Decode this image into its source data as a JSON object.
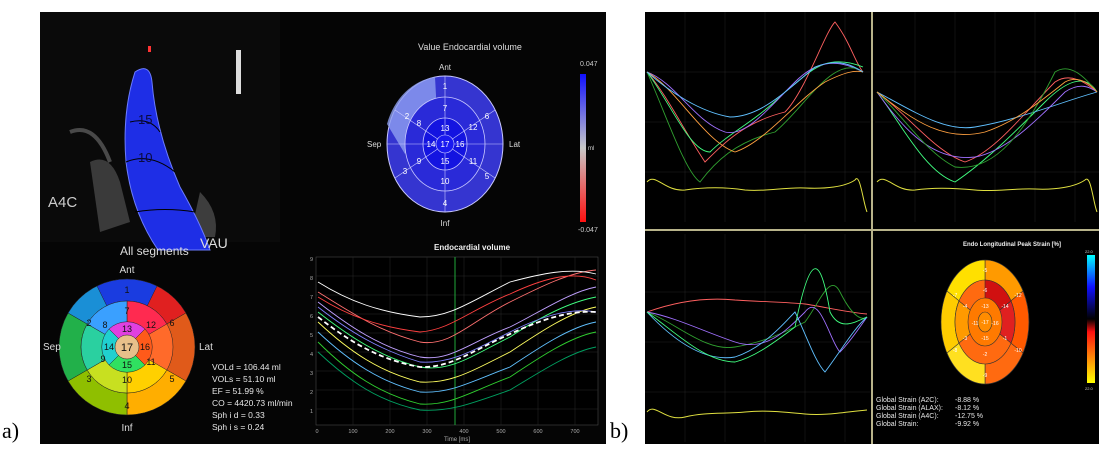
{
  "figure_labels": {
    "a": "a)",
    "b": "b)"
  },
  "panel_a": {
    "view_label": "A4C",
    "bottom_text": "VAU",
    "all_segments_title": "All segments",
    "bullseye_all": {
      "ant": "Ant",
      "inf": "Inf",
      "sep": "Sep",
      "lat": "Lat",
      "segment_labels": [
        "1",
        "2",
        "3",
        "4",
        "5",
        "6",
        "7",
        "8",
        "9",
        "10",
        "11",
        "12",
        "13",
        "14",
        "15",
        "16",
        "17"
      ]
    },
    "metrics": [
      "VOLd = 106.44 ml",
      "VOLs = 51.10 ml",
      "EF = 51.99 %",
      "CO = 4420.73 ml/min",
      "Sph i d = 0.33",
      "Sph i s = 0.24"
    ],
    "value_map": {
      "title": "Value Endocardial volume",
      "ant": "Ant",
      "inf": "Inf",
      "sep": "Sep",
      "lat": "Lat",
      "scale_max": "0.047",
      "scale_min": "-0.047",
      "scale_unit": "ml",
      "segment_labels": [
        "1",
        "2",
        "3",
        "4",
        "5",
        "6",
        "7",
        "8",
        "9",
        "10",
        "11",
        "12",
        "13",
        "14",
        "15",
        "16",
        "17"
      ]
    },
    "volume_chart": {
      "title": "Endocardial volume",
      "xlabel": "Time [ms]",
      "x_ticks": [
        "0",
        "100",
        "200",
        "300",
        "400",
        "500",
        "600",
        "700"
      ],
      "y_ticks": [
        "9",
        "8",
        "7",
        "6",
        "5",
        "4",
        "3",
        "2",
        "1"
      ]
    }
  },
  "panel_b": {
    "strain_map": {
      "title": "Endo Longitudinal Peak Strain [%]",
      "segment_values": [
        "-5",
        "-7",
        "-8",
        "-9",
        "-10",
        "-12",
        "-6",
        "-4",
        "-3",
        "-2",
        "-1",
        "-14",
        "-13",
        "-11",
        "-15",
        "-16",
        "-17"
      ]
    },
    "global_strain": [
      {
        "label": "Global Strain (A2C):",
        "value": "-8.88 %"
      },
      {
        "label": "Global Strain (ALAX):",
        "value": "-8.12 %"
      },
      {
        "label": "Global Strain (A4C):",
        "value": "-12.75 %"
      },
      {
        "label": "Global Strain:",
        "value": "-9.92 %"
      }
    ],
    "colorbar": {
      "top": "22.0",
      "bottom": "22.0"
    }
  }
}
